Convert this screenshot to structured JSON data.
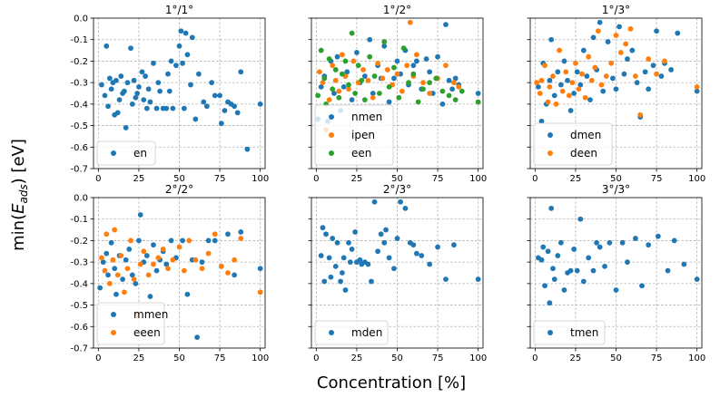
{
  "figure": {
    "xlabel": "Concentration [%]",
    "ylabel": "min(E_ads) [eV]",
    "colors": {
      "blue": "#1f77b4",
      "orange": "#ff7f0e",
      "green": "#2ca02c"
    }
  },
  "chart_data": [
    {
      "type": "scatter",
      "title": "1°/1°",
      "xlim": [
        -3,
        103
      ],
      "ylim": [
        -0.7,
        0.0
      ],
      "xticks": [
        0,
        25,
        50,
        75,
        100
      ],
      "yticks": [
        -0.7,
        -0.6,
        -0.5,
        -0.4,
        -0.3,
        -0.2,
        -0.1,
        0.0
      ],
      "ytick_labels": [
        "-0.7",
        "-0.6",
        "-0.5",
        "-0.4",
        "-0.3",
        "-0.2",
        "-0.1",
        "0.0"
      ],
      "grid": true,
      "legend_position": "lower-left",
      "series": [
        {
          "name": "en",
          "color": "#1f77b4",
          "x": [
            2,
            4,
            5,
            6,
            7,
            8,
            9,
            10,
            11,
            12,
            13,
            14,
            15,
            16,
            17,
            18,
            20,
            21,
            22,
            23,
            24,
            25,
            27,
            28,
            29,
            30,
            31,
            32,
            34,
            36,
            37,
            38,
            40,
            42,
            43,
            44,
            45,
            46,
            48,
            50,
            51,
            52,
            53,
            54,
            55,
            57,
            58,
            60,
            62,
            65,
            67,
            70,
            72,
            75,
            76,
            78,
            80,
            82,
            84,
            86,
            88,
            92,
            100
          ],
          "y": [
            -0.31,
            -0.36,
            -0.13,
            -0.41,
            -0.28,
            -0.33,
            -0.3,
            -0.45,
            -0.29,
            -0.44,
            -0.38,
            -0.27,
            -0.35,
            -0.34,
            -0.51,
            -0.3,
            -0.14,
            -0.4,
            -0.29,
            -0.37,
            -0.35,
            -0.32,
            -0.25,
            -0.38,
            -0.27,
            -0.42,
            -0.33,
            -0.39,
            -0.21,
            -0.42,
            -0.3,
            -0.34,
            -0.42,
            -0.42,
            -0.26,
            -0.34,
            -0.2,
            -0.42,
            -0.22,
            -0.13,
            -0.06,
            -0.21,
            -0.42,
            -0.07,
            -0.17,
            -0.31,
            -0.09,
            -0.47,
            -0.26,
            -0.39,
            -0.41,
            -0.3,
            -0.36,
            -0.36,
            -0.49,
            -0.43,
            -0.39,
            -0.4,
            -0.41,
            -0.44,
            -0.25,
            -0.61,
            -0.4
          ]
        }
      ]
    },
    {
      "type": "scatter",
      "title": "1°/2°",
      "xlim": [
        -3,
        103
      ],
      "ylim": [
        -0.7,
        0.0
      ],
      "xticks": [
        0,
        25,
        50,
        75,
        100
      ],
      "yticks": [
        -0.7,
        -0.6,
        -0.5,
        -0.4,
        -0.3,
        -0.2,
        -0.1,
        0.0
      ],
      "ytick_labels": [],
      "grid": true,
      "legend_position": "lower-left",
      "series": [
        {
          "name": "nmen",
          "color": "#1f77b4",
          "x": [
            1,
            3,
            5,
            7,
            9,
            11,
            13,
            15,
            17,
            19,
            22,
            25,
            27,
            30,
            33,
            35,
            38,
            40,
            42,
            45,
            48,
            50,
            52,
            55,
            57,
            60,
            62,
            65,
            68,
            70,
            72,
            75,
            78,
            80,
            82,
            84,
            86,
            88,
            100
          ],
          "y": [
            -0.47,
            -0.32,
            -0.27,
            -0.48,
            -0.2,
            -0.35,
            -0.18,
            -0.43,
            -0.32,
            -0.25,
            -0.38,
            -0.16,
            -0.3,
            -0.27,
            -0.1,
            -0.35,
            -0.22,
            -0.28,
            -0.13,
            -0.39,
            -0.28,
            -0.2,
            -0.26,
            -0.15,
            -0.31,
            -0.22,
            -0.2,
            -0.33,
            -0.19,
            -0.25,
            -0.35,
            -0.18,
            -0.4,
            -0.03,
            -0.29,
            -0.33,
            -0.28,
            -0.31,
            -0.35
          ]
        },
        {
          "name": "ipen",
          "color": "#ff7f0e",
          "x": [
            2,
            4,
            6,
            8,
            10,
            12,
            14,
            16,
            18,
            20,
            23,
            26,
            29,
            32,
            35,
            38,
            41,
            44,
            47,
            50,
            53,
            56,
            58,
            60,
            62,
            66,
            70,
            75,
            80,
            85,
            88
          ],
          "y": [
            -0.25,
            -0.3,
            -0.52,
            -0.38,
            -0.22,
            -0.29,
            -0.34,
            -0.17,
            -0.27,
            -0.33,
            -0.2,
            -0.3,
            -0.24,
            -0.29,
            -0.37,
            -0.21,
            -0.28,
            -0.24,
            -0.31,
            -0.26,
            -0.34,
            -0.22,
            -0.02,
            -0.27,
            -0.17,
            -0.3,
            -0.35,
            -0.28,
            -0.22,
            -0.3,
            -0.32
          ]
        },
        {
          "name": "een",
          "color": "#2ca02c",
          "x": [
            1,
            3,
            5,
            6,
            8,
            10,
            12,
            14,
            16,
            18,
            20,
            22,
            24,
            26,
            28,
            30,
            33,
            36,
            39,
            42,
            45,
            48,
            51,
            54,
            57,
            60,
            63,
            66,
            70,
            74,
            78,
            82,
            86,
            90,
            100
          ],
          "y": [
            -0.36,
            -0.15,
            -0.28,
            -0.4,
            -0.19,
            -0.33,
            -0.24,
            -0.37,
            -0.26,
            -0.2,
            -0.31,
            -0.07,
            -0.35,
            -0.22,
            -0.29,
            -0.38,
            -0.18,
            -0.27,
            -0.35,
            -0.11,
            -0.32,
            -0.23,
            -0.37,
            -0.14,
            -0.3,
            -0.26,
            -0.39,
            -0.33,
            -0.3,
            -0.28,
            -0.34,
            -0.36,
            -0.38,
            -0.34,
            -0.39
          ]
        }
      ]
    },
    {
      "type": "scatter",
      "title": "1°/3°",
      "xlim": [
        -3,
        103
      ],
      "ylim": [
        -0.7,
        0.0
      ],
      "xticks": [
        0,
        25,
        50,
        75,
        100
      ],
      "yticks": [
        -0.7,
        -0.6,
        -0.5,
        -0.4,
        -0.3,
        -0.2,
        -0.1,
        0.0
      ],
      "ytick_labels": [],
      "grid": true,
      "legend_position": "lower-left",
      "series": [
        {
          "name": "dmen",
          "color": "#1f77b4",
          "x": [
            2,
            4,
            5,
            7,
            9,
            10,
            12,
            14,
            16,
            18,
            20,
            22,
            24,
            26,
            28,
            30,
            32,
            34,
            36,
            38,
            40,
            42,
            45,
            48,
            50,
            52,
            55,
            57,
            60,
            63,
            65,
            68,
            70,
            73,
            75,
            78,
            80,
            84,
            88,
            100
          ],
          "y": [
            -0.32,
            -0.48,
            -0.21,
            -0.4,
            -0.29,
            -0.1,
            -0.36,
            -0.25,
            -0.31,
            -0.2,
            -0.29,
            -0.43,
            -0.35,
            -0.25,
            -0.31,
            -0.15,
            -0.27,
            -0.38,
            -0.09,
            -0.24,
            -0.02,
            -0.34,
            -0.11,
            -0.28,
            -0.33,
            -0.04,
            -0.26,
            -0.19,
            -0.15,
            -0.3,
            -0.46,
            -0.25,
            -0.33,
            -0.22,
            -0.06,
            -0.27,
            -0.21,
            -0.24,
            -0.07,
            -0.34
          ]
        },
        {
          "name": "deen",
          "color": "#ff7f0e",
          "x": [
            1,
            3,
            4,
            6,
            8,
            9,
            11,
            13,
            15,
            17,
            19,
            21,
            23,
            25,
            27,
            29,
            31,
            33,
            35,
            37,
            39,
            41,
            44,
            47,
            50,
            53,
            56,
            59,
            62,
            65,
            70,
            75,
            80,
            100
          ],
          "y": [
            -0.3,
            -0.35,
            -0.29,
            -0.22,
            -0.39,
            -0.32,
            -0.27,
            -0.4,
            -0.15,
            -0.34,
            -0.25,
            -0.36,
            -0.3,
            -0.21,
            -0.33,
            -0.26,
            -0.37,
            -0.18,
            -0.29,
            -0.23,
            -0.06,
            -0.31,
            -0.27,
            -0.21,
            -0.08,
            -0.16,
            -0.12,
            -0.05,
            -0.27,
            -0.45,
            -0.19,
            -0.26,
            -0.2,
            -0.32
          ]
        }
      ]
    },
    {
      "type": "scatter",
      "title": "2°/2°",
      "xlim": [
        -3,
        103
      ],
      "ylim": [
        -0.7,
        0.0
      ],
      "xticks": [
        0,
        25,
        50,
        75,
        100
      ],
      "yticks": [
        -0.7,
        -0.6,
        -0.5,
        -0.4,
        -0.3,
        -0.2,
        -0.1,
        0.0
      ],
      "ytick_labels": [
        "-0.7",
        "-0.6",
        "-0.5",
        "-0.4",
        "-0.3",
        "-0.2",
        "-0.1",
        "0.0"
      ],
      "grid": true,
      "legend_position": "lower-left",
      "series": [
        {
          "name": "mmen",
          "color": "#1f77b4",
          "x": [
            1,
            3,
            5,
            6,
            8,
            10,
            11,
            13,
            15,
            17,
            19,
            21,
            23,
            25,
            26,
            28,
            30,
            32,
            34,
            36,
            38,
            40,
            42,
            45,
            48,
            52,
            55,
            58,
            61,
            64,
            68,
            72,
            76,
            80,
            84,
            88,
            100
          ],
          "y": [
            -0.42,
            -0.3,
            -0.26,
            -0.36,
            -0.21,
            -0.33,
            -0.45,
            -0.27,
            -0.38,
            -0.29,
            -0.24,
            -0.36,
            -0.4,
            -0.2,
            -0.08,
            -0.3,
            -0.27,
            -0.46,
            -0.22,
            -0.34,
            -0.29,
            -0.25,
            -0.31,
            -0.2,
            -0.28,
            -0.2,
            -0.45,
            -0.29,
            -0.65,
            -0.3,
            -0.2,
            -0.2,
            -0.32,
            -0.17,
            -0.36,
            -0.16,
            -0.33
          ]
        },
        {
          "name": "eeen",
          "color": "#ff7f0e",
          "x": [
            2,
            4,
            5,
            7,
            9,
            10,
            12,
            14,
            16,
            18,
            20,
            22,
            24,
            26,
            28,
            31,
            34,
            37,
            40,
            43,
            46,
            50,
            53,
            56,
            60,
            64,
            68,
            72,
            76,
            80,
            84,
            88,
            100
          ],
          "y": [
            -0.28,
            -0.34,
            -0.17,
            -0.4,
            -0.29,
            -0.15,
            -0.36,
            -0.27,
            -0.44,
            -0.33,
            -0.2,
            -0.38,
            -0.55,
            -0.31,
            -0.25,
            -0.36,
            -0.31,
            -0.28,
            -0.24,
            -0.33,
            -0.29,
            -0.23,
            -0.34,
            -0.2,
            -0.29,
            -0.33,
            -0.26,
            -0.17,
            -0.32,
            -0.35,
            -0.29,
            -0.19,
            -0.44
          ]
        }
      ]
    },
    {
      "type": "scatter",
      "title": "2°/3°",
      "xlim": [
        -3,
        103
      ],
      "ylim": [
        -0.7,
        0.0
      ],
      "xticks": [
        0,
        25,
        50,
        75,
        100
      ],
      "yticks": [
        -0.7,
        -0.6,
        -0.5,
        -0.4,
        -0.3,
        -0.2,
        -0.1,
        0.0
      ],
      "ytick_labels": [],
      "grid": true,
      "legend_position": "lower-left",
      "series": [
        {
          "name": "mden",
          "color": "#1f77b4",
          "x": [
            3,
            4,
            5,
            6,
            8,
            9,
            10,
            12,
            13,
            15,
            16,
            17,
            18,
            20,
            21,
            22,
            24,
            25,
            27,
            28,
            30,
            32,
            34,
            36,
            38,
            40,
            42,
            43,
            45,
            48,
            50,
            52,
            55,
            58,
            60,
            62,
            65,
            70,
            75,
            80,
            85,
            100
          ],
          "y": [
            -0.27,
            -0.14,
            -0.39,
            -0.17,
            -0.28,
            -0.37,
            -0.19,
            -0.32,
            -0.21,
            -0.39,
            -0.35,
            -0.28,
            -0.43,
            -0.21,
            -0.3,
            -0.24,
            -0.16,
            -0.3,
            -0.29,
            -0.31,
            -0.3,
            -0.31,
            -0.39,
            -0.02,
            -0.25,
            -0.17,
            -0.21,
            -0.15,
            -0.28,
            -0.33,
            -0.19,
            -0.02,
            -0.05,
            -0.21,
            -0.22,
            -0.26,
            -0.27,
            -0.31,
            -0.23,
            -0.38,
            -0.22,
            -0.38
          ]
        }
      ]
    },
    {
      "type": "scatter",
      "title": "3°/3°",
      "xlim": [
        -3,
        103
      ],
      "ylim": [
        -0.7,
        0.0
      ],
      "xticks": [
        0,
        25,
        50,
        75,
        100
      ],
      "yticks": [
        -0.7,
        -0.6,
        -0.5,
        -0.4,
        -0.3,
        -0.2,
        -0.1,
        0.0
      ],
      "ytick_labels": [],
      "grid": true,
      "legend_position": "lower-left",
      "series": [
        {
          "name": "tmen",
          "color": "#1f77b4",
          "x": [
            2,
            4,
            5,
            6,
            8,
            9,
            10,
            11,
            12,
            14,
            16,
            18,
            20,
            22,
            24,
            26,
            28,
            30,
            33,
            36,
            38,
            40,
            43,
            46,
            50,
            54,
            57,
            62,
            66,
            70,
            76,
            82,
            86,
            92,
            100
          ],
          "y": [
            -0.28,
            -0.29,
            -0.23,
            -0.41,
            -0.25,
            -0.49,
            -0.05,
            -0.33,
            -0.38,
            -0.27,
            -0.21,
            -0.43,
            -0.35,
            -0.34,
            -0.24,
            -0.34,
            -0.1,
            -0.39,
            -0.28,
            -0.34,
            -0.21,
            -0.23,
            -0.32,
            -0.21,
            -0.43,
            -0.21,
            -0.3,
            -0.19,
            -0.41,
            -0.22,
            -0.18,
            -0.34,
            -0.2,
            -0.31,
            -0.38
          ]
        }
      ]
    }
  ]
}
